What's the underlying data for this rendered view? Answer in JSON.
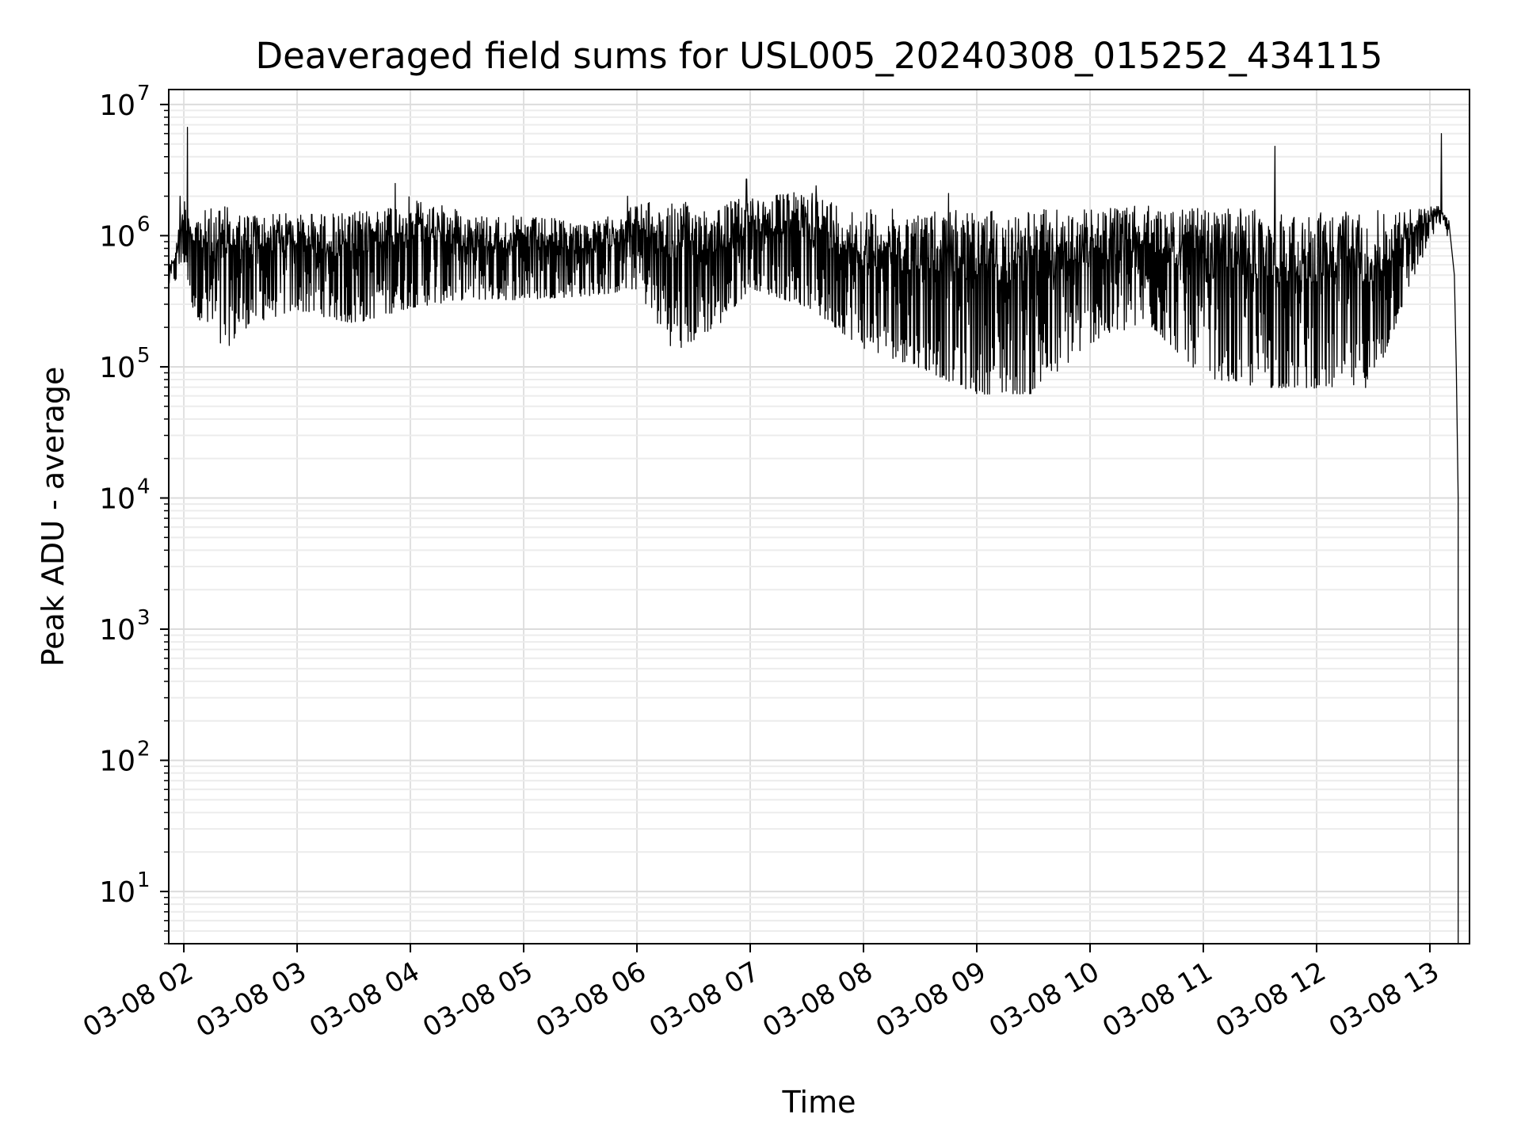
{
  "chart_data": {
    "type": "line",
    "title": "Deaveraged field sums for USL005_20240308_015252_434115",
    "xlabel": "Time",
    "ylabel": "Peak ADU - average",
    "yscale": "log",
    "ylim": [
      4,
      13000000
    ],
    "xlim": [
      "03-08 01:52",
      "03-08 13:21"
    ],
    "grid": "major and minor, light gray",
    "xticks": [
      {
        "t": "03-08 02:00",
        "label": "03-08 02"
      },
      {
        "t": "03-08 03:00",
        "label": "03-08 03"
      },
      {
        "t": "03-08 04:00",
        "label": "03-08 04"
      },
      {
        "t": "03-08 05:00",
        "label": "03-08 05"
      },
      {
        "t": "03-08 06:00",
        "label": "03-08 06"
      },
      {
        "t": "03-08 07:00",
        "label": "03-08 07"
      },
      {
        "t": "03-08 08:00",
        "label": "03-08 08"
      },
      {
        "t": "03-08 09:00",
        "label": "03-08 09"
      },
      {
        "t": "03-08 10:00",
        "label": "03-08 10"
      },
      {
        "t": "03-08 11:00",
        "label": "03-08 11"
      },
      {
        "t": "03-08 12:00",
        "label": "03-08 12"
      },
      {
        "t": "03-08 13:00",
        "label": "03-08 13"
      }
    ],
    "yticks": [
      {
        "value": 10,
        "base": "10",
        "exp": "1"
      },
      {
        "value": 100,
        "base": "10",
        "exp": "2"
      },
      {
        "value": 1000,
        "base": "10",
        "exp": "3"
      },
      {
        "value": 10000,
        "base": "10",
        "exp": "4"
      },
      {
        "value": 100000,
        "base": "10",
        "exp": "5"
      },
      {
        "value": 1000000,
        "base": "10",
        "exp": "6"
      },
      {
        "value": 10000000,
        "base": "10",
        "exp": "7"
      }
    ],
    "series": [
      {
        "color": "#000000",
        "envelope": [
          {
            "t": "03-08 01:52",
            "low": 400000,
            "high": 550000
          },
          {
            "t": "03-08 01:56",
            "low": 400000,
            "high": 900000
          },
          {
            "t": "03-08 02:00",
            "low": 500000,
            "high": 2000000
          },
          {
            "t": "03-08 02:05",
            "low": 200000,
            "high": 1500000
          },
          {
            "t": "03-08 02:20",
            "low": 80000,
            "high": 1700000
          },
          {
            "t": "03-08 02:35",
            "low": 150000,
            "high": 1500000
          },
          {
            "t": "03-08 03:00",
            "low": 200000,
            "high": 1500000
          },
          {
            "t": "03-08 03:30",
            "low": 150000,
            "high": 1500000
          },
          {
            "t": "03-08 04:00",
            "low": 200000,
            "high": 2000000
          },
          {
            "t": "03-08 04:30",
            "low": 250000,
            "high": 1500000
          },
          {
            "t": "03-08 05:00",
            "low": 250000,
            "high": 1400000
          },
          {
            "t": "03-08 05:40",
            "low": 280000,
            "high": 1300000
          },
          {
            "t": "03-08 06:00",
            "low": 300000,
            "high": 1800000
          },
          {
            "t": "03-08 06:20",
            "low": 80000,
            "high": 1800000
          },
          {
            "t": "03-08 06:45",
            "low": 150000,
            "high": 1800000
          },
          {
            "t": "03-08 07:00",
            "low": 300000,
            "high": 2000000
          },
          {
            "t": "03-08 07:30",
            "low": 200000,
            "high": 2200000
          },
          {
            "t": "03-08 08:00",
            "low": 90000,
            "high": 1600000
          },
          {
            "t": "03-08 08:30",
            "low": 60000,
            "high": 1600000
          },
          {
            "t": "03-08 09:00",
            "low": 35000,
            "high": 1600000
          },
          {
            "t": "03-08 09:30",
            "low": 35000,
            "high": 1600000
          },
          {
            "t": "03-08 10:00",
            "low": 100000,
            "high": 1600000
          },
          {
            "t": "03-08 10:30",
            "low": 150000,
            "high": 1700000
          },
          {
            "t": "03-08 11:00",
            "low": 50000,
            "high": 1600000
          },
          {
            "t": "03-08 11:30",
            "low": 40000,
            "high": 1600000
          },
          {
            "t": "03-08 12:00",
            "low": 40000,
            "high": 1500000
          },
          {
            "t": "03-08 12:30",
            "low": 40000,
            "high": 1600000
          },
          {
            "t": "03-08 12:50",
            "low": 350000,
            "high": 1600000
          },
          {
            "t": "03-08 13:05",
            "low": 1200000,
            "high": 1700000
          },
          {
            "t": "03-08 13:10",
            "low": 900000,
            "high": 1300000
          }
        ],
        "spikes": [
          {
            "t": "03-08 02:02",
            "value": 6700000
          },
          {
            "t": "03-08 01:58",
            "value": 2000000
          },
          {
            "t": "03-08 03:52",
            "value": 2500000
          },
          {
            "t": "03-08 05:55",
            "value": 2000000
          },
          {
            "t": "03-08 06:58",
            "value": 2700000
          },
          {
            "t": "03-08 07:35",
            "value": 2400000
          },
          {
            "t": "03-08 08:45",
            "value": 2100000
          },
          {
            "t": "03-08 11:38",
            "value": 4800000
          },
          {
            "t": "03-08 13:06",
            "value": 6000000
          }
        ],
        "tail": [
          {
            "t": "03-08 13:10",
            "value": 1300000
          },
          {
            "t": "03-08 13:13",
            "value": 500000
          },
          {
            "t": "03-08 13:14",
            "value": 100000
          },
          {
            "t": "03-08 13:15",
            "value": 10000
          },
          {
            "t": "03-08 13:15",
            "value": 4
          }
        ]
      }
    ]
  }
}
